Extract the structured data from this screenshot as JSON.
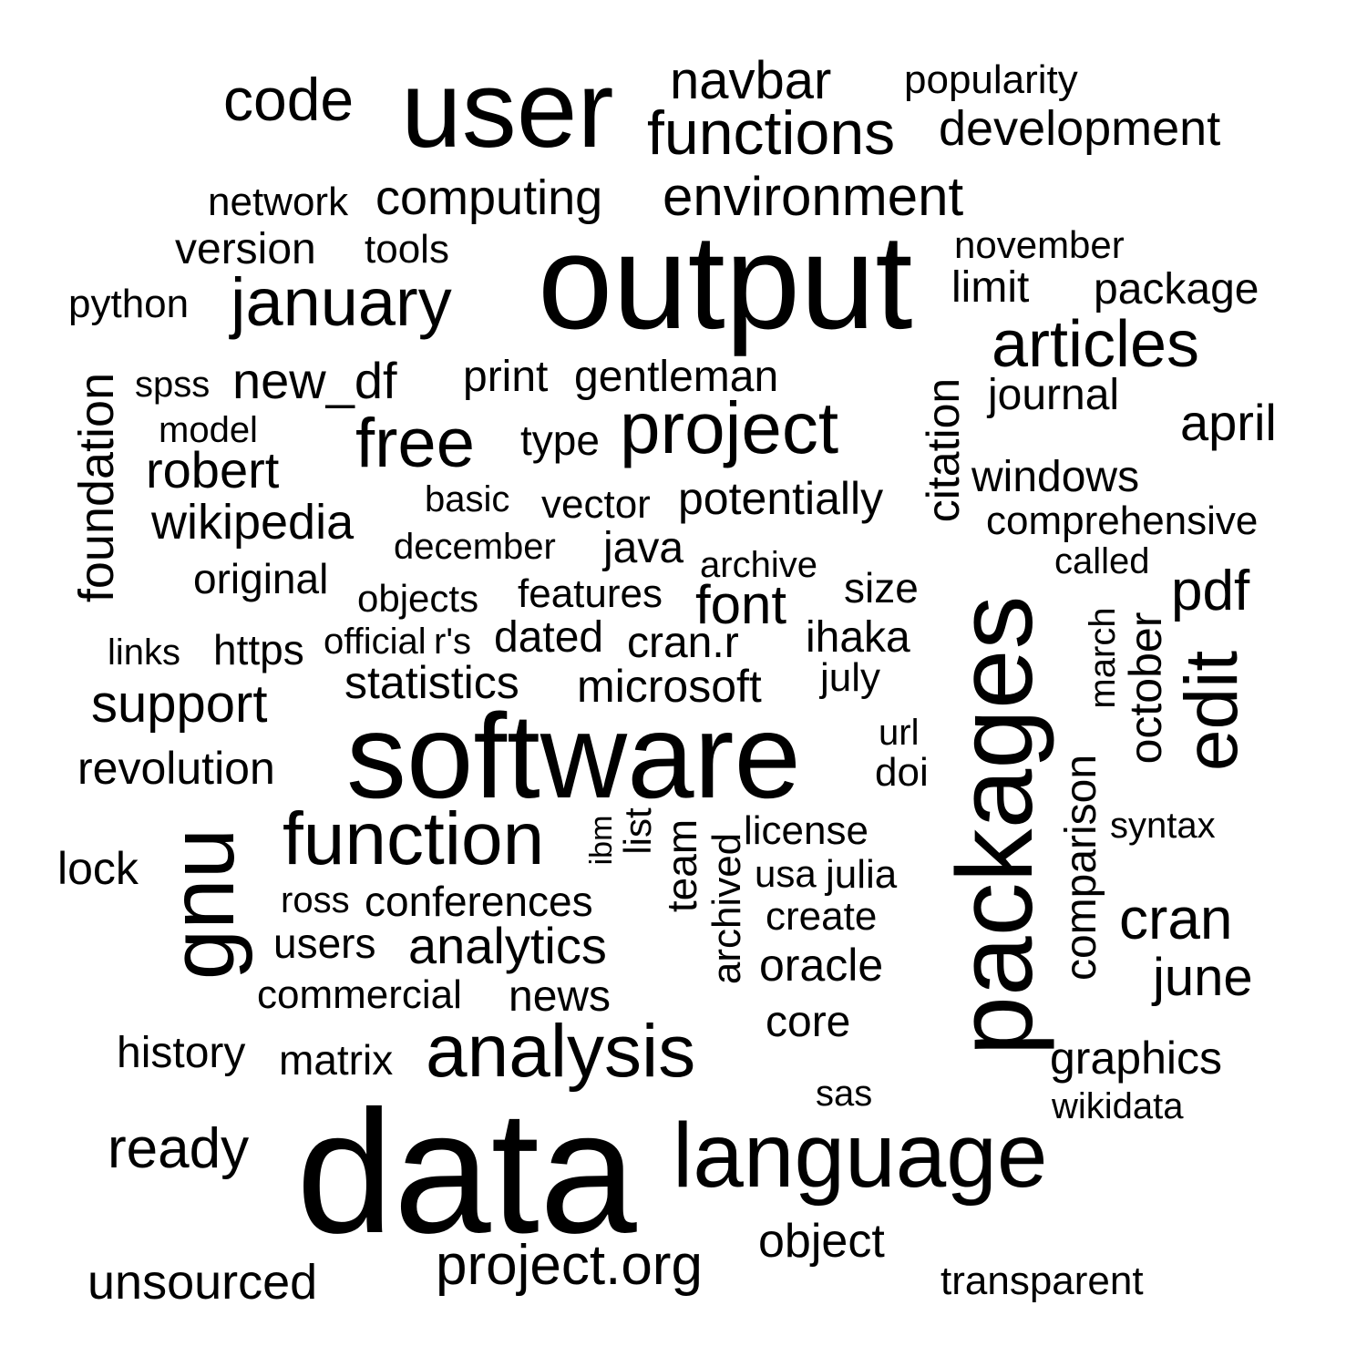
{
  "words": [
    {
      "text": "data"
    },
    {
      "text": "software"
    },
    {
      "text": "output"
    },
    {
      "text": "packages"
    },
    {
      "text": "user"
    },
    {
      "text": "language"
    },
    {
      "text": "analysis"
    },
    {
      "text": "gnu"
    },
    {
      "text": "function"
    },
    {
      "text": "project"
    },
    {
      "text": "edit"
    },
    {
      "text": "free"
    },
    {
      "text": "articles"
    },
    {
      "text": "january"
    },
    {
      "text": "functions"
    },
    {
      "text": "code"
    },
    {
      "text": "environment"
    },
    {
      "text": "cran"
    },
    {
      "text": "project.org"
    },
    {
      "text": "navbar"
    },
    {
      "text": "foundation"
    },
    {
      "text": "development"
    },
    {
      "text": "computing"
    },
    {
      "text": "support"
    },
    {
      "text": "analytics"
    },
    {
      "text": "citation"
    },
    {
      "text": "new_df"
    },
    {
      "text": "robert"
    },
    {
      "text": "june"
    },
    {
      "text": "april"
    },
    {
      "text": "pdf"
    },
    {
      "text": "ready"
    },
    {
      "text": "wikipedia"
    },
    {
      "text": "version"
    },
    {
      "text": "unsourced"
    },
    {
      "text": "oracle"
    },
    {
      "text": "potentially"
    },
    {
      "text": "object"
    },
    {
      "text": "statistics"
    },
    {
      "text": "graphics"
    },
    {
      "text": "package"
    },
    {
      "text": "revolution"
    },
    {
      "text": "microsoft"
    },
    {
      "text": "font"
    },
    {
      "text": "october"
    },
    {
      "text": "limit"
    },
    {
      "text": "comparison"
    },
    {
      "text": "journal"
    },
    {
      "text": "print"
    },
    {
      "text": "gentleman"
    },
    {
      "text": "windows"
    },
    {
      "text": "history"
    },
    {
      "text": "archived"
    },
    {
      "text": "popularity"
    },
    {
      "text": "python"
    },
    {
      "text": "comprehensive"
    },
    {
      "text": "ihaka"
    },
    {
      "text": "lock"
    },
    {
      "text": "original"
    },
    {
      "text": "dated"
    },
    {
      "text": "features"
    },
    {
      "text": "java"
    },
    {
      "text": "november"
    },
    {
      "text": "network"
    },
    {
      "text": "tools"
    },
    {
      "text": "type"
    },
    {
      "text": "cran.r"
    },
    {
      "text": "vector"
    },
    {
      "text": "conferences"
    },
    {
      "text": "commercial"
    },
    {
      "text": "news"
    },
    {
      "text": "users"
    },
    {
      "text": "team"
    },
    {
      "text": "matrix"
    },
    {
      "text": "core"
    },
    {
      "text": "march"
    },
    {
      "text": "transparent"
    },
    {
      "text": "license"
    },
    {
      "text": "usa"
    },
    {
      "text": "julia"
    },
    {
      "text": "create"
    },
    {
      "text": "list"
    },
    {
      "text": "https"
    },
    {
      "text": "basic"
    },
    {
      "text": "december"
    },
    {
      "text": "archive"
    },
    {
      "text": "size"
    },
    {
      "text": "july"
    },
    {
      "text": "doi"
    },
    {
      "text": "objects"
    },
    {
      "text": "official"
    },
    {
      "text": "r's"
    },
    {
      "text": "spss"
    },
    {
      "text": "model"
    },
    {
      "text": "called"
    },
    {
      "text": "syntax"
    },
    {
      "text": "links"
    },
    {
      "text": "ross"
    },
    {
      "text": "sas"
    },
    {
      "text": "wikidata"
    },
    {
      "text": "url"
    },
    {
      "text": "ibm"
    }
  ]
}
